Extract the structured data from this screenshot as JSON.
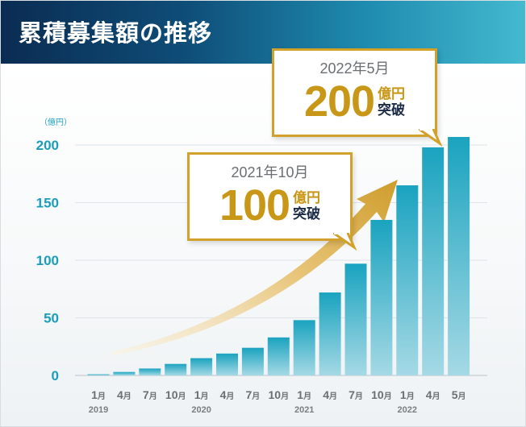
{
  "header": {
    "title": "累積募集額の推移"
  },
  "colors": {
    "header_start": "#0b2c52",
    "header_end": "#44b9cf",
    "bar_top": "#1aa3bf",
    "bar_bottom": "#9ed6e3",
    "axis_text": "#1b9db9",
    "accent_gold": "#c99717",
    "navy": "#1c2c46"
  },
  "chart_data": {
    "type": "bar",
    "unit_label": "（億円）",
    "y_ticks": [
      0,
      50,
      100,
      150,
      200
    ],
    "ylim": [
      0,
      220
    ],
    "grid": true,
    "categories": [
      "1月",
      "4月",
      "7月",
      "10月",
      "1月",
      "4月",
      "7月",
      "10月",
      "1月",
      "4月",
      "7月",
      "10月",
      "1月",
      "4月",
      "5月"
    ],
    "x_labels": [
      {
        "num": "1",
        "suffix": "月",
        "year": "2019"
      },
      {
        "num": "4",
        "suffix": "月",
        "year": ""
      },
      {
        "num": "7",
        "suffix": "月",
        "year": ""
      },
      {
        "num": "10",
        "suffix": "月",
        "year": ""
      },
      {
        "num": "1",
        "suffix": "月",
        "year": "2020"
      },
      {
        "num": "4",
        "suffix": "月",
        "year": ""
      },
      {
        "num": "7",
        "suffix": "月",
        "year": ""
      },
      {
        "num": "10",
        "suffix": "月",
        "year": ""
      },
      {
        "num": "1",
        "suffix": "月",
        "year": "2021"
      },
      {
        "num": "4",
        "suffix": "月",
        "year": ""
      },
      {
        "num": "7",
        "suffix": "月",
        "year": ""
      },
      {
        "num": "10",
        "suffix": "月",
        "year": ""
      },
      {
        "num": "1",
        "suffix": "月",
        "year": "2022"
      },
      {
        "num": "4",
        "suffix": "月",
        "year": ""
      },
      {
        "num": "5",
        "suffix": "月",
        "year": ""
      }
    ],
    "values": [
      1,
      3,
      6,
      10,
      15,
      19,
      24,
      33,
      48,
      72,
      97,
      135,
      165,
      198,
      207
    ],
    "callouts": [
      {
        "date": "2021年10月",
        "value": "100",
        "unit_line1": "億円",
        "unit_line2": "突破"
      },
      {
        "date": "2022年5月",
        "value": "200",
        "unit_line1": "億円",
        "unit_line2": "突破"
      }
    ]
  }
}
